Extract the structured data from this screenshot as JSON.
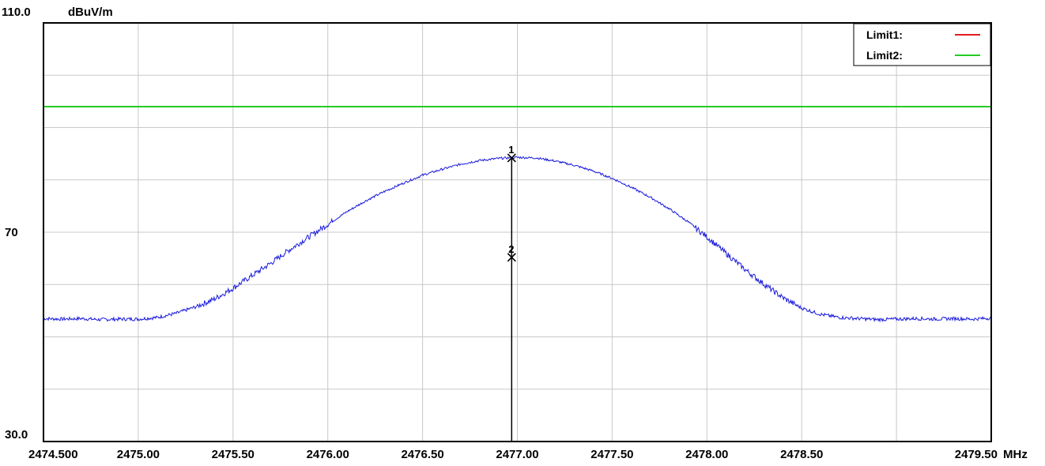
{
  "chart_data": {
    "type": "line",
    "y_top_label": "110.0",
    "y_unit": "dBuV/m",
    "ylim": [
      30,
      110
    ],
    "xlim": [
      2474.5,
      2479.5
    ],
    "x_unit": "MHz",
    "y_tick_labels": [
      {
        "value": 110,
        "label": "110.0"
      },
      {
        "value": 70,
        "label": "70"
      },
      {
        "value": 30,
        "label": "30.0"
      }
    ],
    "x_tick_labels": [
      {
        "value": 2474.5,
        "label": "2474.500"
      },
      {
        "value": 2475.0,
        "label": "2475.00"
      },
      {
        "value": 2475.5,
        "label": "2475.50"
      },
      {
        "value": 2476.0,
        "label": "2476.00"
      },
      {
        "value": 2476.5,
        "label": "2476.50"
      },
      {
        "value": 2477.0,
        "label": "2477.00"
      },
      {
        "value": 2477.5,
        "label": "2477.50"
      },
      {
        "value": 2478.0,
        "label": "2478.00"
      },
      {
        "value": 2478.5,
        "label": "2478.50"
      },
      {
        "value": 2479.5,
        "label": "2479.50"
      }
    ],
    "grid": true,
    "legend": {
      "placement": "top-right",
      "items": [
        {
          "label": "Limit1:",
          "color": "#e41a1a"
        },
        {
          "label": "Limit2:",
          "color": "#22cc22"
        }
      ]
    },
    "limits": [
      {
        "name": "Limit1",
        "value": 110,
        "color": "#e41a1a"
      },
      {
        "name": "Limit2",
        "value": 94,
        "color": "#22cc22"
      }
    ],
    "series": [
      {
        "color": "#1a1adc",
        "x": [
          2474.5,
          2474.6,
          2474.7,
          2474.8,
          2474.9,
          2475.0,
          2475.1,
          2475.2,
          2475.3,
          2475.4,
          2475.5,
          2475.6,
          2475.7,
          2475.8,
          2475.9,
          2476.0,
          2476.1,
          2476.2,
          2476.3,
          2476.4,
          2476.5,
          2476.6,
          2476.7,
          2476.8,
          2476.9,
          2477.0,
          2477.1,
          2477.2,
          2477.3,
          2477.4,
          2477.5,
          2477.6,
          2477.7,
          2477.8,
          2477.9,
          2478.0,
          2478.1,
          2478.2,
          2478.3,
          2478.4,
          2478.5,
          2478.6,
          2478.7,
          2478.8,
          2478.9,
          2479.0,
          2479.1,
          2479.2,
          2479.3,
          2479.4,
          2479.5
        ],
        "values": [
          53.5,
          53.4,
          53.5,
          53.3,
          53.4,
          53.4,
          53.7,
          54.5,
          55.7,
          57.2,
          59.3,
          61.7,
          64.1,
          66.7,
          69.1,
          71.5,
          73.9,
          76.0,
          77.8,
          79.4,
          80.9,
          82.0,
          83.0,
          83.7,
          84.1,
          84.3,
          84.2,
          83.6,
          82.8,
          81.7,
          80.3,
          78.6,
          76.7,
          74.5,
          72.0,
          69.1,
          66.0,
          62.9,
          60.1,
          57.5,
          55.5,
          54.3,
          53.7,
          53.5,
          53.3,
          53.4,
          53.5,
          53.4,
          53.5,
          53.4,
          53.6
        ]
      }
    ],
    "marker_line_x": 2476.97,
    "markers": [
      {
        "label": "1",
        "x": 2476.97,
        "y": 84.2
      },
      {
        "label": "2",
        "x": 2476.97,
        "y": 65.2
      }
    ]
  }
}
